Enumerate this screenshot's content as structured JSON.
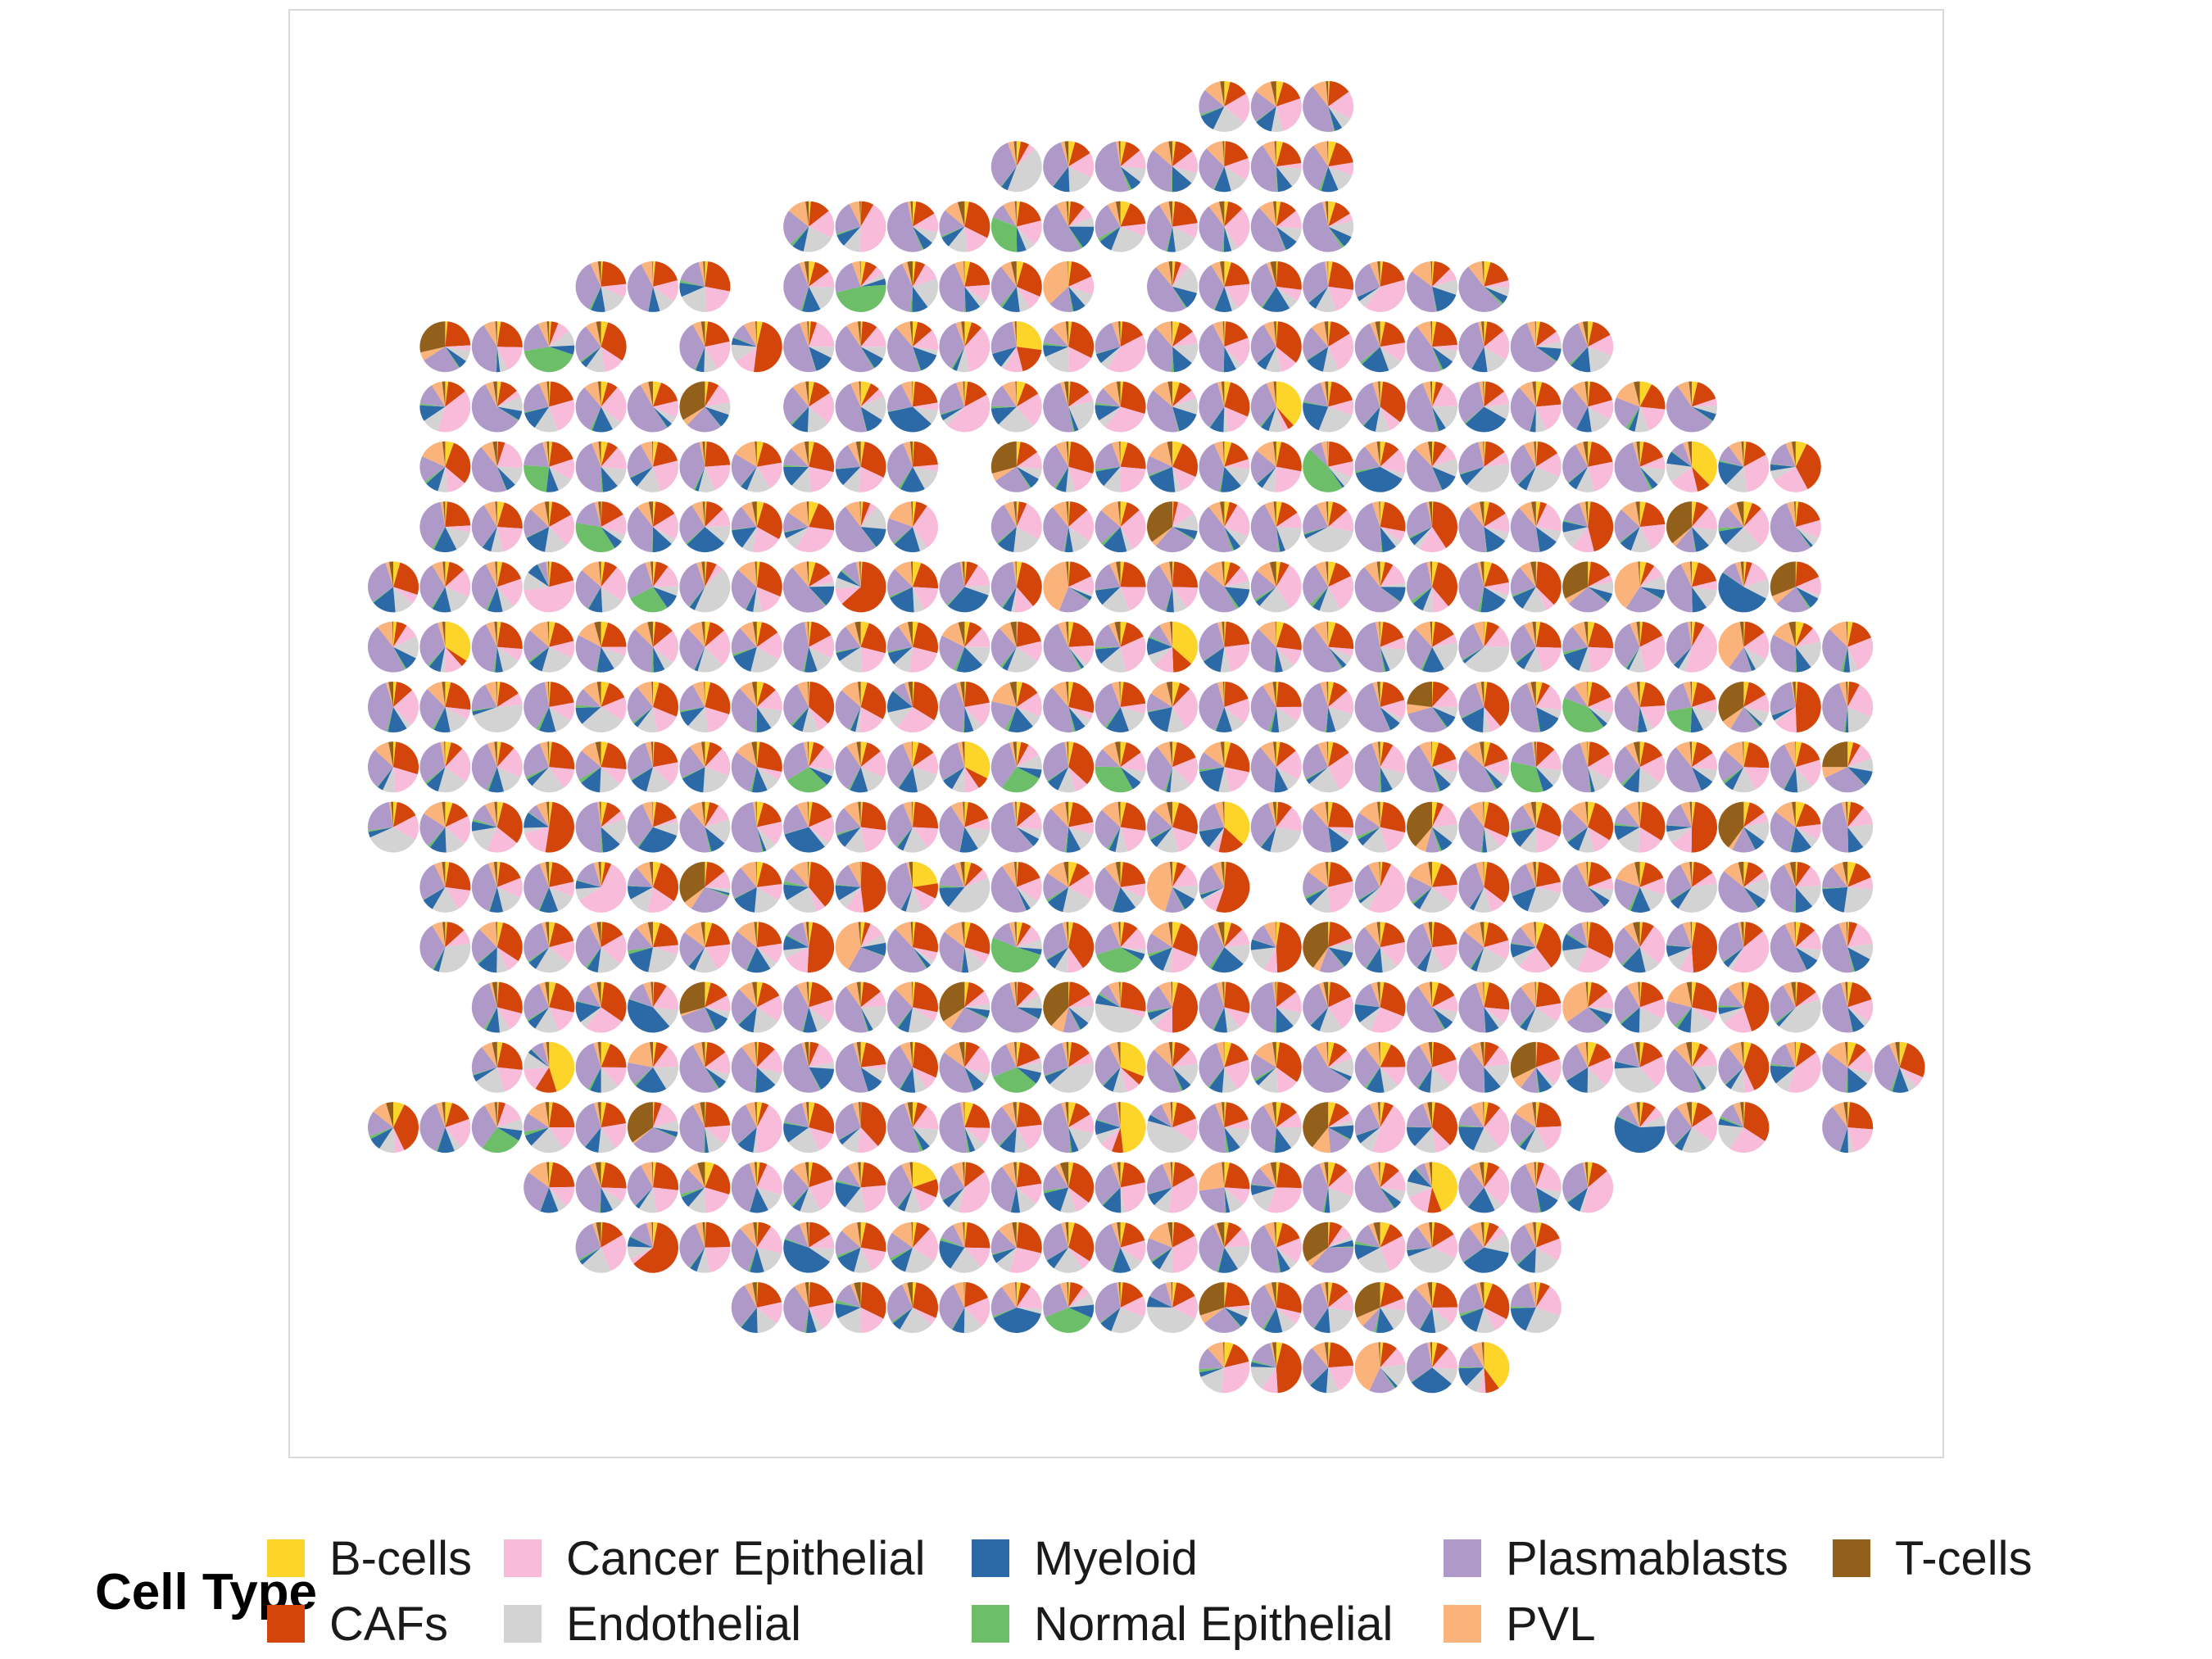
{
  "chart_data": {
    "type": "scatter-pie",
    "title": "",
    "xlabel": "",
    "ylabel": "",
    "grid": false,
    "legend": {
      "title": "Cell Type",
      "position": "bottom",
      "ncol": 5
    },
    "cell_types": [
      {
        "name": "B-cells",
        "color": "#FDD42A"
      },
      {
        "name": "CAFs",
        "color": "#D3450B"
      },
      {
        "name": "Cancer Epithelial",
        "color": "#F8BBDA"
      },
      {
        "name": "Endothelial",
        "color": "#D3D3D3"
      },
      {
        "name": "Myeloid",
        "color": "#2C6AA7"
      },
      {
        "name": "Normal Epithelial",
        "color": "#6DBE69"
      },
      {
        "name": "Plasmablasts",
        "color": "#AE99C9"
      },
      {
        "name": "PVL",
        "color": "#F9B37B"
      },
      {
        "name": "T-cells",
        "color": "#93601C"
      }
    ],
    "grid_rows": 22,
    "grid_cols": 29,
    "row_spans": [
      {
        "row": 0,
        "spans": [
          [
            16,
            18
          ]
        ]
      },
      {
        "row": 1,
        "spans": [
          [
            12,
            18
          ]
        ]
      },
      {
        "row": 2,
        "spans": [
          [
            8,
            18
          ]
        ]
      },
      {
        "row": 3,
        "spans": [
          [
            4,
            6
          ],
          [
            8,
            13
          ],
          [
            15,
            21
          ]
        ]
      },
      {
        "row": 4,
        "spans": [
          [
            1,
            4
          ],
          [
            6,
            23
          ]
        ]
      },
      {
        "row": 5,
        "spans": [
          [
            1,
            6
          ],
          [
            8,
            25
          ]
        ]
      },
      {
        "row": 6,
        "spans": [
          [
            1,
            10
          ],
          [
            12,
            27
          ]
        ]
      },
      {
        "row": 7,
        "spans": [
          [
            1,
            10
          ],
          [
            12,
            27
          ]
        ]
      },
      {
        "row": 8,
        "spans": [
          [
            0,
            27
          ]
        ]
      },
      {
        "row": 9,
        "spans": [
          [
            0,
            28
          ]
        ]
      },
      {
        "row": 10,
        "spans": [
          [
            0,
            28
          ]
        ]
      },
      {
        "row": 11,
        "spans": [
          [
            0,
            28
          ]
        ]
      },
      {
        "row": 12,
        "spans": [
          [
            0,
            28
          ]
        ]
      },
      {
        "row": 13,
        "spans": [
          [
            1,
            16
          ],
          [
            18,
            28
          ]
        ]
      },
      {
        "row": 14,
        "spans": [
          [
            1,
            28
          ]
        ]
      },
      {
        "row": 15,
        "spans": [
          [
            2,
            28
          ]
        ]
      },
      {
        "row": 16,
        "spans": [
          [
            2,
            29
          ]
        ]
      },
      {
        "row": 17,
        "spans": [
          [
            0,
            22
          ],
          [
            24,
            26
          ],
          [
            28,
            28
          ]
        ]
      },
      {
        "row": 18,
        "spans": [
          [
            3,
            23
          ]
        ]
      },
      {
        "row": 19,
        "spans": [
          [
            4,
            6
          ],
          [
            7,
            22
          ]
        ]
      },
      {
        "row": 20,
        "spans": [
          [
            7,
            22
          ]
        ]
      },
      {
        "row": 21,
        "spans": [
          [
            16,
            21
          ]
        ]
      }
    ],
    "typical_composition": {
      "Plasmablasts": 0.32,
      "CAFs": 0.18,
      "Cancer Epithelial": 0.16,
      "Endothelial": 0.12,
      "Myeloid": 0.09,
      "PVL": 0.07,
      "B-cells": 0.03,
      "T-cells": 0.02,
      "Normal Epithelial": 0.01
    }
  }
}
